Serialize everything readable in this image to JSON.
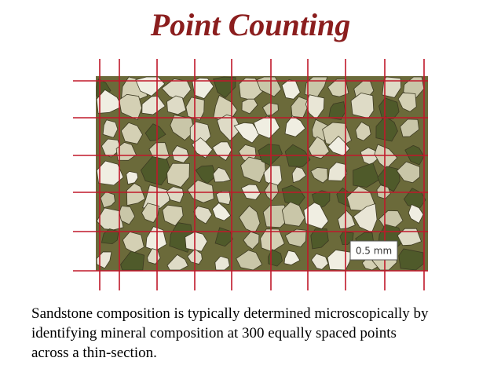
{
  "header": {
    "title": "Point Counting"
  },
  "figure": {
    "scale_label": "0.5 mm"
  },
  "body": {
    "lines": [
      "Sandstone composition is typically determined microscopically by",
      "identifying mineral composition at 300 equally spaced points",
      "across a thin-section."
    ]
  }
}
